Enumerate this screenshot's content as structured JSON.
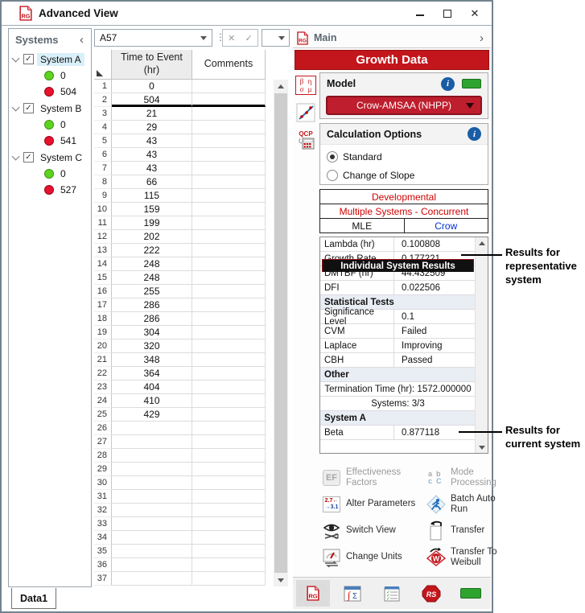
{
  "window": {
    "title": "Advanced View"
  },
  "systems_panel": {
    "title": "Systems",
    "collapse_glyph": "‹",
    "items": [
      {
        "name": "System A",
        "checked": true,
        "selected": true,
        "good_count": "0",
        "bad_count": "504"
      },
      {
        "name": "System B",
        "checked": true,
        "selected": false,
        "good_count": "0",
        "bad_count": "541"
      },
      {
        "name": "System C",
        "checked": true,
        "selected": false,
        "good_count": "0",
        "bad_count": "527"
      }
    ]
  },
  "formula_bar": {
    "cell_ref": "A57"
  },
  "grid": {
    "columns": [
      "Time to Event (hr)",
      "Comments"
    ],
    "values": [
      "0",
      "504",
      "21",
      "29",
      "43",
      "43",
      "43",
      "66",
      "115",
      "159",
      "199",
      "202",
      "222",
      "248",
      "248",
      "255",
      "286",
      "286",
      "304",
      "320",
      "348",
      "364",
      "404",
      "410",
      "429"
    ],
    "total_rows": 37,
    "divider_after_row": 2
  },
  "sheet_tabs": [
    "Data1"
  ],
  "main_panel": {
    "title": "Main",
    "expand_glyph": "›",
    "banner": "Growth Data",
    "model": {
      "label": "Model",
      "selected": "Crow-AMSAA (NHPP)"
    },
    "calculation_options": {
      "label": "Calculation Options",
      "options": [
        {
          "label": "Standard",
          "selected": true
        },
        {
          "label": "Change of Slope",
          "selected": false
        }
      ]
    },
    "analysis_type": {
      "line1": "Developmental",
      "line2": "Multiple Systems - Concurrent",
      "left": "MLE",
      "right": "Crow"
    },
    "results": [
      {
        "type": "pair",
        "label": "Lambda (hr)",
        "value": "0.100808"
      },
      {
        "type": "pair",
        "label": "Growth Rate",
        "value": "0.177221"
      },
      {
        "type": "pair",
        "label": "DMTBF (hr)",
        "value": "44.432509"
      },
      {
        "type": "pair",
        "label": "DFI",
        "value": "0.022506"
      },
      {
        "type": "section",
        "label": "Statistical Tests"
      },
      {
        "type": "pair",
        "label": "Significance Level",
        "value": "0.1"
      },
      {
        "type": "pair",
        "label": "CVM",
        "value": "Failed"
      },
      {
        "type": "pair",
        "label": "Laplace",
        "value": "Improving"
      },
      {
        "type": "pair",
        "label": "CBH",
        "value": "Passed"
      },
      {
        "type": "section",
        "label": "Other"
      },
      {
        "type": "center",
        "label": "Termination Time (hr): 1572.000000"
      },
      {
        "type": "center",
        "label": "Systems: 3/3"
      },
      {
        "type": "banner",
        "label": "Individual System Results"
      },
      {
        "type": "section",
        "label": "System A"
      },
      {
        "type": "pair",
        "label": "Beta",
        "value": "0.877118"
      }
    ],
    "strip_icons": [
      "parameters-greek-icon",
      "plot-icon",
      "qcp-icon"
    ],
    "actions": [
      {
        "icon": "effectiveness-factors-icon",
        "label": "Effectiveness Factors",
        "disabled": true
      },
      {
        "icon": "mode-processing-icon",
        "label": "Mode Processing",
        "disabled": true
      },
      {
        "icon": "alter-parameters-icon",
        "label": "Alter Parameters",
        "disabled": false
      },
      {
        "icon": "batch-auto-run-icon",
        "label": "Batch Auto Run",
        "disabled": false
      },
      {
        "icon": "switch-view-icon",
        "label": "Switch View",
        "disabled": false
      },
      {
        "icon": "transfer-icon",
        "label": "Transfer",
        "disabled": false
      },
      {
        "icon": "change-units-icon",
        "label": "Change Units",
        "disabled": false
      },
      {
        "icon": "transfer-to-weibull-icon",
        "label": "Transfer To Weibull",
        "disabled": false
      }
    ],
    "bottom_tabs": [
      {
        "icon": "rg-sheet-icon",
        "selected": true
      },
      {
        "icon": "function-sheet-icon",
        "selected": false
      },
      {
        "icon": "worksheet-icon",
        "selected": false
      },
      {
        "icon": "reliasoft-icon",
        "selected": false
      },
      {
        "icon": "status-green-icon",
        "selected": false
      }
    ]
  },
  "annotations": [
    {
      "text": "Results for representative system"
    },
    {
      "text": "Results for current system"
    }
  ],
  "colors": {
    "accent_red": "#c3161c",
    "dropdown_red": "#be1e2d",
    "red_text": "#d00000",
    "crow_blue": "#0033cc",
    "info_blue": "#1a5da6",
    "status_green": "#2ea32e",
    "dot_green": "#5cd41f",
    "dot_red": "#e8112d"
  }
}
